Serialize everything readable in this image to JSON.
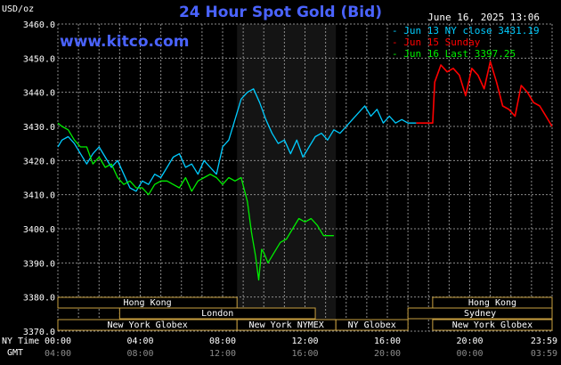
{
  "header": {
    "unit": "USD/oz",
    "title": "24 Hour Spot Gold (Bid)",
    "site": "www.kitco.com",
    "timestamp": "June 16, 2025 13:06"
  },
  "legend": [
    {
      "prefix": "- ",
      "text": "Jun 13 NY close 3431.19",
      "color": "#00ccff"
    },
    {
      "prefix": "- ",
      "text": "Jun 15 Sunday",
      "color": "#ff0000"
    },
    {
      "prefix": "- ",
      "text": "Jun 16 Last 3397.25",
      "color": "#00ee00"
    }
  ],
  "axis_labels": {
    "ny_time": "NY Time",
    "gmt": "GMT"
  },
  "colors": {
    "grid": "#8a8a8a",
    "session_fill": "#141414",
    "bar_fill": "#000000",
    "bar_border": "#c8a040",
    "bar_text": "#ffffff",
    "gmt_text": "#8c8c8c"
  },
  "sessions": [
    {
      "row": 0,
      "label": "Hong Kong",
      "start": 0,
      "end": 8.7
    },
    {
      "row": 0,
      "label": "Hong Kong",
      "start": 18.2,
      "end": 24
    },
    {
      "row": 1,
      "label": "London",
      "start": 3,
      "end": 12.5
    },
    {
      "row": 1,
      "label": "Sydney",
      "start": 17,
      "end": 24
    },
    {
      "row": 2,
      "label": "New York Globex",
      "start": 0,
      "end": 8.7
    },
    {
      "row": 2,
      "label": "New York NYMEX",
      "start": 8.7,
      "end": 13.5
    },
    {
      "row": 2,
      "label": "NY Globex",
      "start": 13.5,
      "end": 17
    },
    {
      "row": 2,
      "label": "New York Globex",
      "start": 18.2,
      "end": 24
    }
  ],
  "chart_data": {
    "type": "line",
    "title": "24 Hour Spot Gold (Bid)",
    "ylabel": "USD/oz",
    "xlabel": "NY Time",
    "x_unit": "hours (NY time)",
    "xlim": [
      0,
      24
    ],
    "ylim": [
      3370,
      3460
    ],
    "yticks": [
      3370,
      3380,
      3390,
      3400,
      3410,
      3420,
      3430,
      3440,
      3450,
      3460
    ],
    "ytick_labels": [
      "3370.0",
      "3380.0",
      "3390.0",
      "3400.0",
      "3410.0",
      "3420.0",
      "3430.0",
      "3440.0",
      "3450.0",
      "3460.0"
    ],
    "xticks": [
      0,
      4,
      8,
      12,
      16,
      20,
      24
    ],
    "xtick_labels_ny": [
      "00:00",
      "04:00",
      "08:00",
      "12:00",
      "16:00",
      "20:00",
      "23:59"
    ],
    "xtick_labels_gmt": [
      "04:00",
      "08:00",
      "12:00",
      "16:00",
      "20:00",
      "00:00",
      "03:59"
    ],
    "grid": true,
    "highlight_range": [
      8.7,
      13.5
    ],
    "series": [
      {
        "name": "Jun 13 NY close 3431.19",
        "color": "#00ccff",
        "x": [
          0,
          0.2,
          0.5,
          0.8,
          1.1,
          1.4,
          1.7,
          2.0,
          2.3,
          2.6,
          2.9,
          3.2,
          3.5,
          3.8,
          4.1,
          4.4,
          4.7,
          5.0,
          5.3,
          5.6,
          5.9,
          6.2,
          6.5,
          6.8,
          7.1,
          7.4,
          7.7,
          8.0,
          8.3,
          8.6,
          8.9,
          9.2,
          9.5,
          9.8,
          10.1,
          10.4,
          10.7,
          11.0,
          11.3,
          11.6,
          11.9,
          12.2,
          12.5,
          12.8,
          13.1,
          13.4,
          13.7,
          14.0,
          14.3,
          14.6,
          14.9,
          15.2,
          15.5,
          15.8,
          16.1,
          16.4,
          16.7,
          17.0,
          17.4
        ],
        "y": [
          3424,
          3426,
          3427,
          3425,
          3422,
          3419,
          3422,
          3424,
          3421,
          3418,
          3420,
          3416,
          3412,
          3411,
          3414,
          3413,
          3416,
          3415,
          3418,
          3421,
          3422,
          3418,
          3419,
          3416,
          3420,
          3418,
          3416,
          3424,
          3426,
          3432,
          3438,
          3440,
          3441,
          3437,
          3432,
          3428,
          3425,
          3426,
          3422,
          3426,
          3421,
          3424,
          3427,
          3428,
          3426,
          3429,
          3428,
          3430,
          3432,
          3434,
          3436,
          3433,
          3435,
          3431,
          3433,
          3431,
          3432,
          3431,
          3431
        ]
      },
      {
        "name": "Jun 15 Sunday",
        "color": "#ff0000",
        "x": [
          17.4,
          18.2,
          18.3,
          18.6,
          18.9,
          19.2,
          19.5,
          19.8,
          20.1,
          20.4,
          20.7,
          21.0,
          21.3,
          21.6,
          21.9,
          22.2,
          22.5,
          22.8,
          23.1,
          23.4,
          23.7,
          24.0
        ],
        "y": [
          3431,
          3431,
          3443,
          3448,
          3446,
          3447,
          3445,
          3439,
          3447,
          3445,
          3441,
          3449,
          3443,
          3436,
          3435,
          3433,
          3442,
          3440,
          3437,
          3436,
          3433,
          3430
        ]
      },
      {
        "name": "Jun 16 Last 3397.25",
        "color": "#00ee00",
        "x": [
          0,
          0.2,
          0.5,
          0.8,
          1.1,
          1.4,
          1.7,
          2.0,
          2.3,
          2.6,
          2.9,
          3.2,
          3.5,
          3.8,
          4.1,
          4.4,
          4.7,
          5.0,
          5.3,
          5.6,
          5.9,
          6.2,
          6.5,
          6.8,
          7.1,
          7.4,
          7.7,
          8.0,
          8.3,
          8.6,
          8.9,
          9.2,
          9.4,
          9.6,
          9.75,
          9.9,
          10.0,
          10.2,
          10.5,
          10.8,
          11.1,
          11.4,
          11.7,
          12.0,
          12.3,
          12.6,
          12.9,
          13.2,
          13.4
        ],
        "y": [
          3431,
          3430,
          3429,
          3426,
          3424,
          3424,
          3419,
          3421,
          3418,
          3419,
          3415,
          3413,
          3414,
          3412,
          3412,
          3410,
          3413,
          3414,
          3414,
          3413,
          3412,
          3415,
          3411,
          3414,
          3415,
          3416,
          3415,
          3413,
          3415,
          3414,
          3415,
          3408,
          3399,
          3392,
          3385,
          3394,
          3393,
          3390,
          3393,
          3396,
          3397,
          3400,
          3403,
          3402,
          3403,
          3401,
          3398,
          3398,
          3398
        ]
      }
    ]
  }
}
